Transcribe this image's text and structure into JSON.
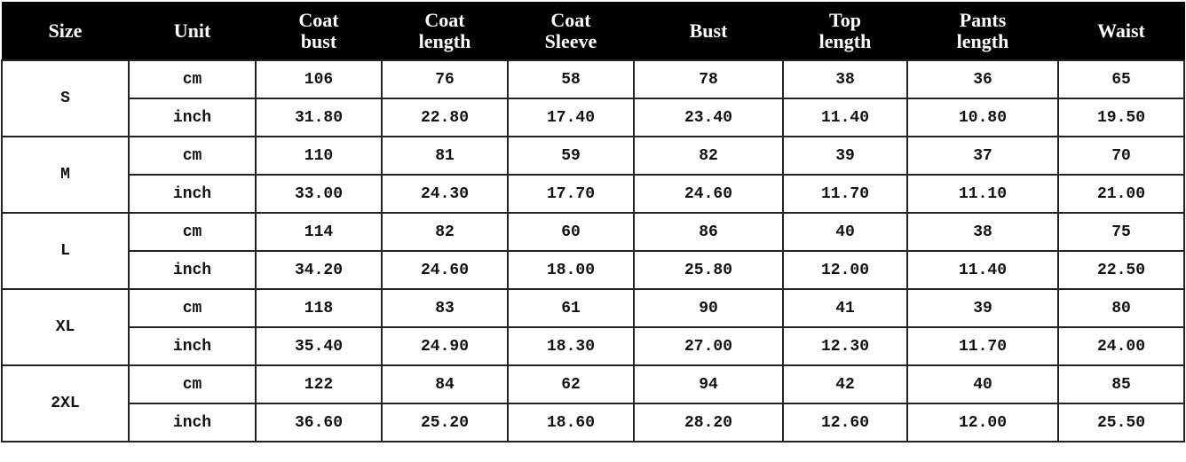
{
  "table": {
    "headers": [
      "Size",
      "Unit",
      "Coat\nbust",
      "Coat\nlength",
      "Coat\nSleeve",
      "Bust",
      "Top\nlength",
      "Pants\nlength",
      "Waist"
    ],
    "sizes": [
      {
        "size": "S",
        "rows": [
          {
            "unit": "cm",
            "values": [
              "106",
              "76",
              "58",
              "78",
              "38",
              "36",
              "65"
            ]
          },
          {
            "unit": "inch",
            "values": [
              "31.80",
              "22.80",
              "17.40",
              "23.40",
              "11.40",
              "10.80",
              "19.50"
            ]
          }
        ]
      },
      {
        "size": "M",
        "rows": [
          {
            "unit": "cm",
            "values": [
              "110",
              "81",
              "59",
              "82",
              "39",
              "37",
              "70"
            ]
          },
          {
            "unit": "inch",
            "values": [
              "33.00",
              "24.30",
              "17.70",
              "24.60",
              "11.70",
              "11.10",
              "21.00"
            ]
          }
        ]
      },
      {
        "size": "L",
        "rows": [
          {
            "unit": "cm",
            "values": [
              "114",
              "82",
              "60",
              "86",
              "40",
              "38",
              "75"
            ]
          },
          {
            "unit": "inch",
            "values": [
              "34.20",
              "24.60",
              "18.00",
              "25.80",
              "12.00",
              "11.40",
              "22.50"
            ]
          }
        ]
      },
      {
        "size": "XL",
        "rows": [
          {
            "unit": "cm",
            "values": [
              "118",
              "83",
              "61",
              "90",
              "41",
              "39",
              "80"
            ]
          },
          {
            "unit": "inch",
            "values": [
              "35.40",
              "24.90",
              "18.30",
              "27.00",
              "12.30",
              "11.70",
              "24.00"
            ]
          }
        ]
      },
      {
        "size": "2XL",
        "rows": [
          {
            "unit": "cm",
            "values": [
              "122",
              "84",
              "62",
              "94",
              "42",
              "40",
              "85"
            ]
          },
          {
            "unit": "inch",
            "values": [
              "36.60",
              "25.20",
              "18.60",
              "28.20",
              "12.60",
              "12.00",
              "25.50"
            ]
          }
        ]
      }
    ]
  }
}
